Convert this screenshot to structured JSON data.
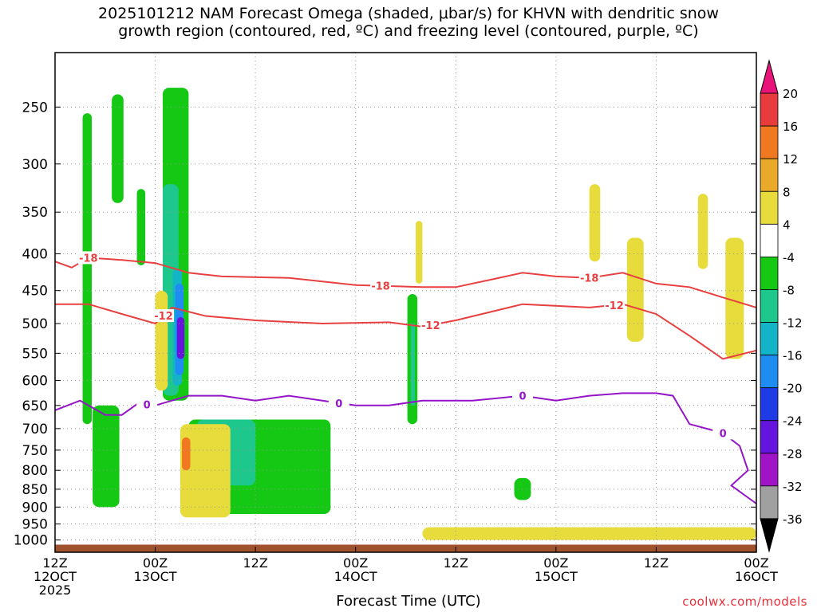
{
  "title": {
    "line1": "2025101212 NAM Forecast Omega (shaded, μbar/s) for KHVN with dendritic snow",
    "line2": "growth region (contoured, red, ºC) and freezing level (contoured, purple, ºC)"
  },
  "xlabel": "Forecast Time (UTC)",
  "credit": "coolwx.com/models",
  "chart_data": {
    "type": "heatmap",
    "y_axis": {
      "label": "",
      "type": "log pressure (hPa), decreasing upward",
      "ticks": [
        250,
        300,
        350,
        400,
        450,
        500,
        550,
        600,
        650,
        700,
        750,
        800,
        850,
        900,
        950,
        1000
      ]
    },
    "x_axis": {
      "ticks": [
        {
          "hour": 0,
          "line1": "12Z",
          "line2": "12OCT",
          "line3": "2025"
        },
        {
          "hour": 12,
          "line1": "00Z",
          "line2": "13OCT",
          "line3": ""
        },
        {
          "hour": 24,
          "line1": "12Z",
          "line2": "",
          "line3": ""
        },
        {
          "hour": 36,
          "line1": "00Z",
          "line2": "14OCT",
          "line3": ""
        },
        {
          "hour": 48,
          "line1": "12Z",
          "line2": "",
          "line3": ""
        },
        {
          "hour": 60,
          "line1": "00Z",
          "line2": "15OCT",
          "line3": ""
        },
        {
          "hour": 72,
          "line1": "12Z",
          "line2": "",
          "line3": ""
        },
        {
          "hour": 84,
          "line1": "00Z",
          "line2": "16OCT",
          "line3": ""
        }
      ],
      "range_hours": [
        0,
        84
      ]
    },
    "grid": true,
    "colorbar": {
      "levels": [
        {
          "lo": 20,
          "hi": null,
          "color": "#e8147a",
          "label": ""
        },
        {
          "lo": 16,
          "hi": 20,
          "color": "#e83c3c",
          "label": "20"
        },
        {
          "lo": 12,
          "hi": 16,
          "color": "#f07820",
          "label": "16"
        },
        {
          "lo": 8,
          "hi": 12,
          "color": "#e8aa28",
          "label": "12"
        },
        {
          "lo": 4,
          "hi": 8,
          "color": "#e8dc3c",
          "label": "8"
        },
        {
          "lo": -4,
          "hi": 4,
          "color": "#ffffff",
          "label": "4"
        },
        {
          "lo": -8,
          "hi": -4,
          "color": "#14c814",
          "label": "-4"
        },
        {
          "lo": -12,
          "hi": -8,
          "color": "#1ec88c",
          "label": "-8"
        },
        {
          "lo": -16,
          "hi": -12,
          "color": "#14b4c8",
          "label": "-12"
        },
        {
          "lo": -20,
          "hi": -16,
          "color": "#1e8cf0",
          "label": "-16"
        },
        {
          "lo": -24,
          "hi": -20,
          "color": "#1e3ce6",
          "label": "-20"
        },
        {
          "lo": -28,
          "hi": -24,
          "color": "#6414dc",
          "label": "-24"
        },
        {
          "lo": -32,
          "hi": -28,
          "color": "#a014c8",
          "label": "-28"
        },
        {
          "lo": -36,
          "hi": -32,
          "color": "#a0a0a0",
          "label": "-32"
        },
        {
          "lo": null,
          "hi": -36,
          "color": "#000000",
          "label": "-36"
        }
      ]
    },
    "contours": [
      {
        "name": "-18",
        "color": "#e84040",
        "label_hours": [
          4,
          39,
          64
        ],
        "label": "-18",
        "points": [
          [
            0,
            410
          ],
          [
            2,
            418
          ],
          [
            4,
            405
          ],
          [
            8,
            408
          ],
          [
            12,
            412
          ],
          [
            16,
            425
          ],
          [
            20,
            430
          ],
          [
            28,
            432
          ],
          [
            36,
            442
          ],
          [
            44,
            445
          ],
          [
            48,
            445
          ],
          [
            52,
            435
          ],
          [
            56,
            425
          ],
          [
            60,
            430
          ],
          [
            64,
            432
          ],
          [
            68,
            425
          ],
          [
            72,
            440
          ],
          [
            76,
            445
          ],
          [
            80,
            460
          ],
          [
            84,
            475
          ]
        ]
      },
      {
        "name": "-12",
        "color": "#e84040",
        "label_hours": [
          13,
          45,
          67
        ],
        "label": "-12",
        "points": [
          [
            0,
            470
          ],
          [
            4,
            470
          ],
          [
            8,
            485
          ],
          [
            12,
            500
          ],
          [
            14,
            475
          ],
          [
            18,
            488
          ],
          [
            24,
            495
          ],
          [
            32,
            500
          ],
          [
            40,
            498
          ],
          [
            44,
            505
          ],
          [
            48,
            495
          ],
          [
            56,
            470
          ],
          [
            64,
            475
          ],
          [
            68,
            470
          ],
          [
            72,
            485
          ],
          [
            76,
            520
          ],
          [
            80,
            560
          ],
          [
            84,
            545
          ]
        ]
      },
      {
        "name": "0",
        "color": "#9414c8",
        "label_hours": [
          11,
          34,
          56,
          80
        ],
        "label": "0",
        "points": [
          [
            0,
            660
          ],
          [
            3,
            640
          ],
          [
            6,
            670
          ],
          [
            8,
            670
          ],
          [
            10,
            645
          ],
          [
            12,
            650
          ],
          [
            16,
            630
          ],
          [
            20,
            630
          ],
          [
            24,
            640
          ],
          [
            28,
            630
          ],
          [
            32,
            640
          ],
          [
            36,
            650
          ],
          [
            40,
            650
          ],
          [
            44,
            640
          ],
          [
            50,
            640
          ],
          [
            56,
            630
          ],
          [
            60,
            640
          ],
          [
            64,
            630
          ],
          [
            68,
            625
          ],
          [
            72,
            625
          ],
          [
            74,
            630
          ],
          [
            76,
            690
          ],
          [
            80,
            710
          ],
          [
            82,
            740
          ],
          [
            83,
            800
          ],
          [
            81,
            840
          ],
          [
            84,
            890
          ]
        ]
      }
    ],
    "omega_regions": [
      {
        "value": -6,
        "hour_range": [
          3.3,
          4.4
        ],
        "p_range": [
          255,
          690
        ]
      },
      {
        "value": -6,
        "hour_range": [
          6.8,
          8.2
        ],
        "p_range": [
          240,
          340
        ]
      },
      {
        "value": -6,
        "hour_range": [
          9.8,
          10.8
        ],
        "p_range": [
          325,
          415
        ]
      },
      {
        "value": -6,
        "hour_range": [
          12.9,
          16.0
        ],
        "p_range": [
          235,
          640
        ]
      },
      {
        "value": -10,
        "hour_range": [
          12.9,
          14.8
        ],
        "p_range": [
          320,
          630
        ]
      },
      {
        "value": -14,
        "hour_range": [
          14.1,
          15.2
        ],
        "p_range": [
          420,
          610
        ]
      },
      {
        "value": -18,
        "hour_range": [
          14.4,
          15.4
        ],
        "p_range": [
          440,
          590
        ]
      },
      {
        "value": -26,
        "hour_range": [
          14.6,
          15.5
        ],
        "p_range": [
          490,
          560
        ]
      },
      {
        "value": -6,
        "hour_range": [
          42.2,
          43.4
        ],
        "p_range": [
          455,
          690
        ]
      },
      {
        "value": -10,
        "hour_range": [
          42.6,
          43.1
        ],
        "p_range": [
          500,
          650
        ]
      },
      {
        "value": -6,
        "hour_range": [
          4.5,
          7.7
        ],
        "p_range": [
          650,
          900
        ]
      },
      {
        "value": -6,
        "hour_range": [
          16.0,
          33.0
        ],
        "p_range": [
          680,
          920
        ]
      },
      {
        "value": -10,
        "hour_range": [
          17.0,
          24.0
        ],
        "p_range": [
          680,
          840
        ]
      },
      {
        "value": -6,
        "hour_range": [
          55.0,
          57.0
        ],
        "p_range": [
          820,
          880
        ]
      },
      {
        "value": 6,
        "hour_range": [
          12.0,
          13.5
        ],
        "p_range": [
          450,
          620
        ]
      },
      {
        "value": 6,
        "hour_range": [
          15.0,
          21.0
        ],
        "p_range": [
          690,
          930
        ]
      },
      {
        "value": 14,
        "hour_range": [
          15.2,
          16.2
        ],
        "p_range": [
          720,
          800
        ]
      },
      {
        "value": 6,
        "hour_range": [
          43.2,
          44.0
        ],
        "p_range": [
          360,
          440
        ]
      },
      {
        "value": 6,
        "hour_range": [
          64.0,
          65.3
        ],
        "p_range": [
          320,
          410
        ]
      },
      {
        "value": 6,
        "hour_range": [
          68.5,
          70.5
        ],
        "p_range": [
          380,
          530
        ]
      },
      {
        "value": 6,
        "hour_range": [
          77.0,
          78.2
        ],
        "p_range": [
          330,
          420
        ]
      },
      {
        "value": 6,
        "hour_range": [
          80.3,
          82.5
        ],
        "p_range": [
          380,
          560
        ]
      },
      {
        "value": 6,
        "hour_range": [
          44.0,
          84.0
        ],
        "p_range": [
          960,
          1000
        ]
      }
    ]
  }
}
